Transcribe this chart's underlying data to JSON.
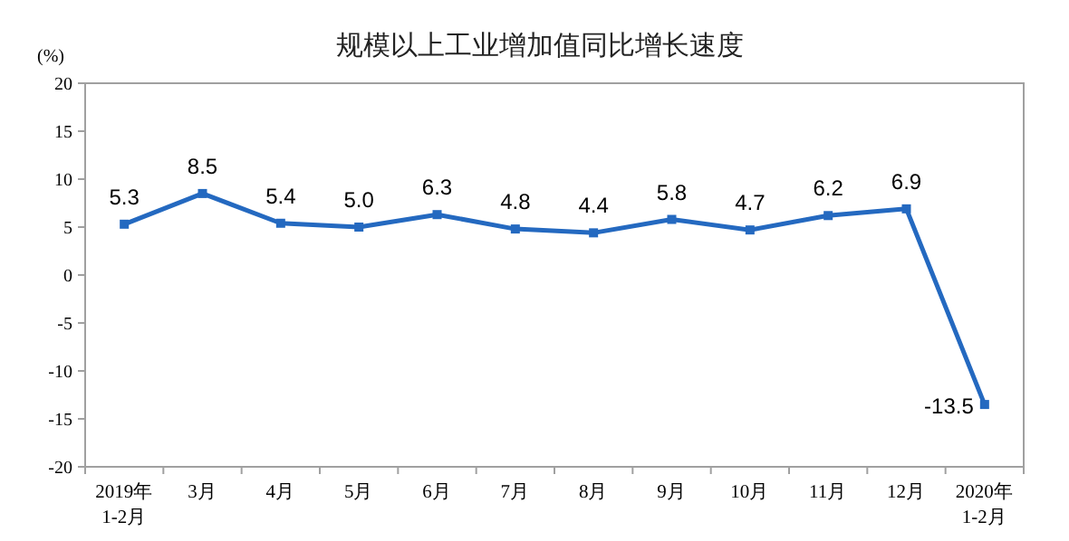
{
  "chart_data": {
    "type": "line",
    "title": "规模以上工业增加值同比增长速度",
    "ylabel": "(%)",
    "categories": [
      "2019年\n1-2月",
      "3月",
      "4月",
      "5月",
      "6月",
      "7月",
      "8月",
      "9月",
      "10月",
      "11月",
      "12月",
      "2020年\n1-2月"
    ],
    "series": [
      {
        "color": "#2469c0",
        "values": [
          5.3,
          8.5,
          5.4,
          5.0,
          6.3,
          4.8,
          4.4,
          5.8,
          4.7,
          6.2,
          6.9,
          -13.5
        ],
        "value_labels": [
          "5.3",
          "8.5",
          "5.4",
          "5.0",
          "6.3",
          "4.8",
          "4.4",
          "5.8",
          "4.7",
          "6.2",
          "6.9",
          "-13.5"
        ]
      }
    ],
    "ylim": [
      -20,
      20
    ],
    "yticks": [
      -20,
      -15,
      -10,
      -5,
      0,
      5,
      10,
      15,
      20
    ],
    "marker": "square",
    "line_style": "solid"
  }
}
